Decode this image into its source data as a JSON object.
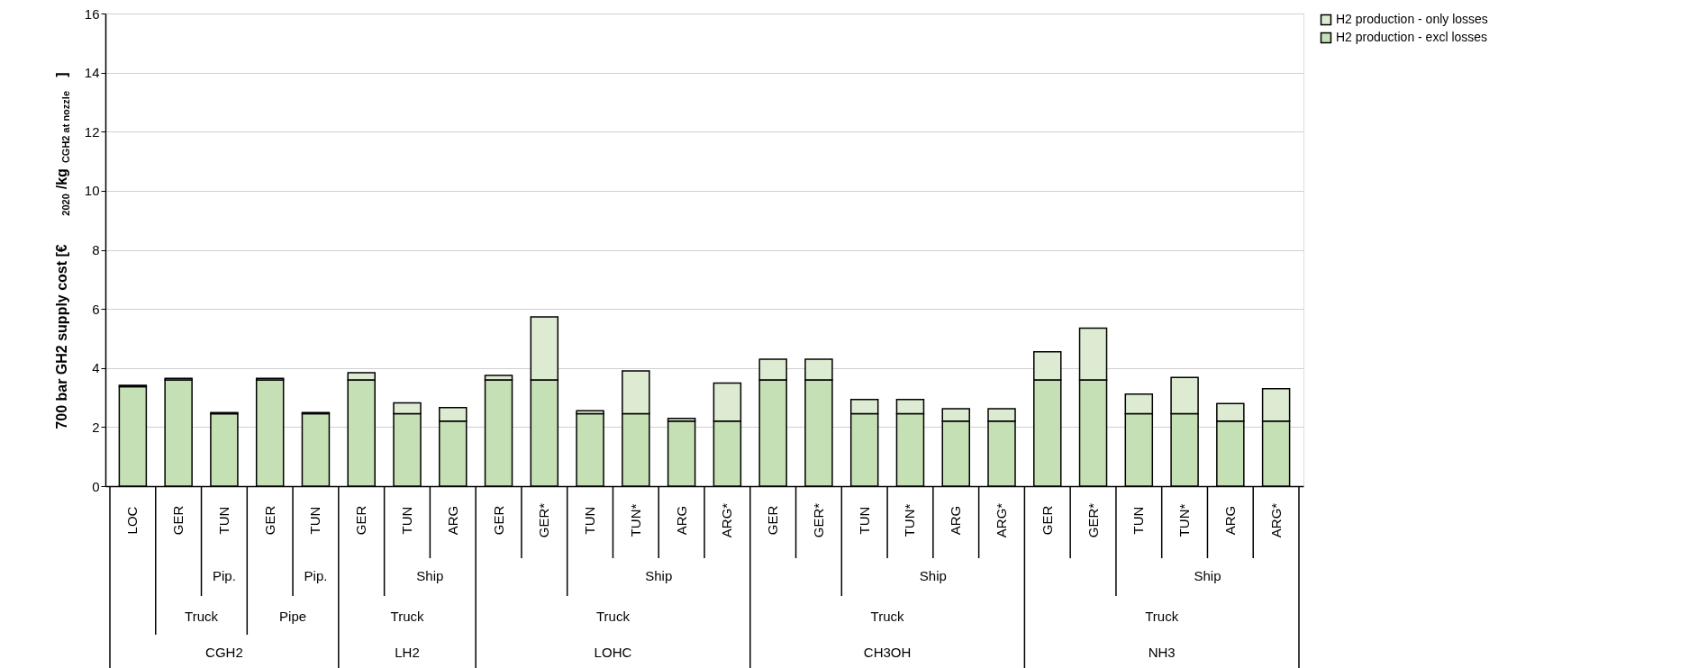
{
  "chart_data": {
    "type": "bar",
    "stacked": true,
    "ylabel": "700 bar GH2 supply cost [€$_{2020}$/kg$_{CGH2 at nozzle}$]",
    "categories": [
      "LOC",
      "GER",
      "TUN",
      "GER",
      "TUN",
      "GER",
      "TUN",
      "ARG",
      "GER",
      "GER*",
      "TUN",
      "TUN*",
      "ARG",
      "ARG*",
      "GER",
      "GER*",
      "TUN",
      "TUN*",
      "ARG",
      "ARG*",
      "GER",
      "GER*",
      "TUN",
      "TUN*",
      "ARG",
      "ARG*"
    ],
    "series": [
      {
        "name": "H2 production - excl losses",
        "color": "#c5e0b4",
        "values": [
          3.37,
          3.6,
          2.45,
          3.6,
          2.45,
          3.6,
          2.45,
          2.2,
          3.6,
          3.6,
          2.45,
          2.45,
          2.2,
          2.2,
          3.6,
          3.6,
          2.45,
          2.45,
          2.2,
          2.2,
          3.6,
          3.6,
          2.45,
          2.45,
          2.2,
          2.2
        ]
      },
      {
        "name": "H2 production - only losses",
        "color": "#dcebd1",
        "values": [
          0.04,
          0.05,
          0.04,
          0.05,
          0.04,
          0.24,
          0.37,
          0.46,
          0.15,
          2.13,
          0.1,
          1.45,
          0.09,
          1.29,
          0.7,
          0.7,
          0.48,
          0.48,
          0.42,
          0.42,
          0.95,
          1.75,
          0.67,
          1.23,
          0.6,
          1.1
        ]
      }
    ],
    "ylim": [
      0,
      16
    ],
    "yticks": [
      0,
      2,
      4,
      6,
      8,
      10,
      12,
      14,
      16
    ],
    "grid": "y",
    "legend": "right",
    "annotations": [
      "Pip.",
      "Pip.",
      "Ship",
      "Ship",
      "Ship",
      "Ship",
      "Truck",
      "Pipe",
      "Truck",
      "Truck",
      "Truck",
      "Truck",
      "CGH2",
      "LH2",
      "LOHC",
      "CH3OH",
      "NH3"
    ]
  }
}
